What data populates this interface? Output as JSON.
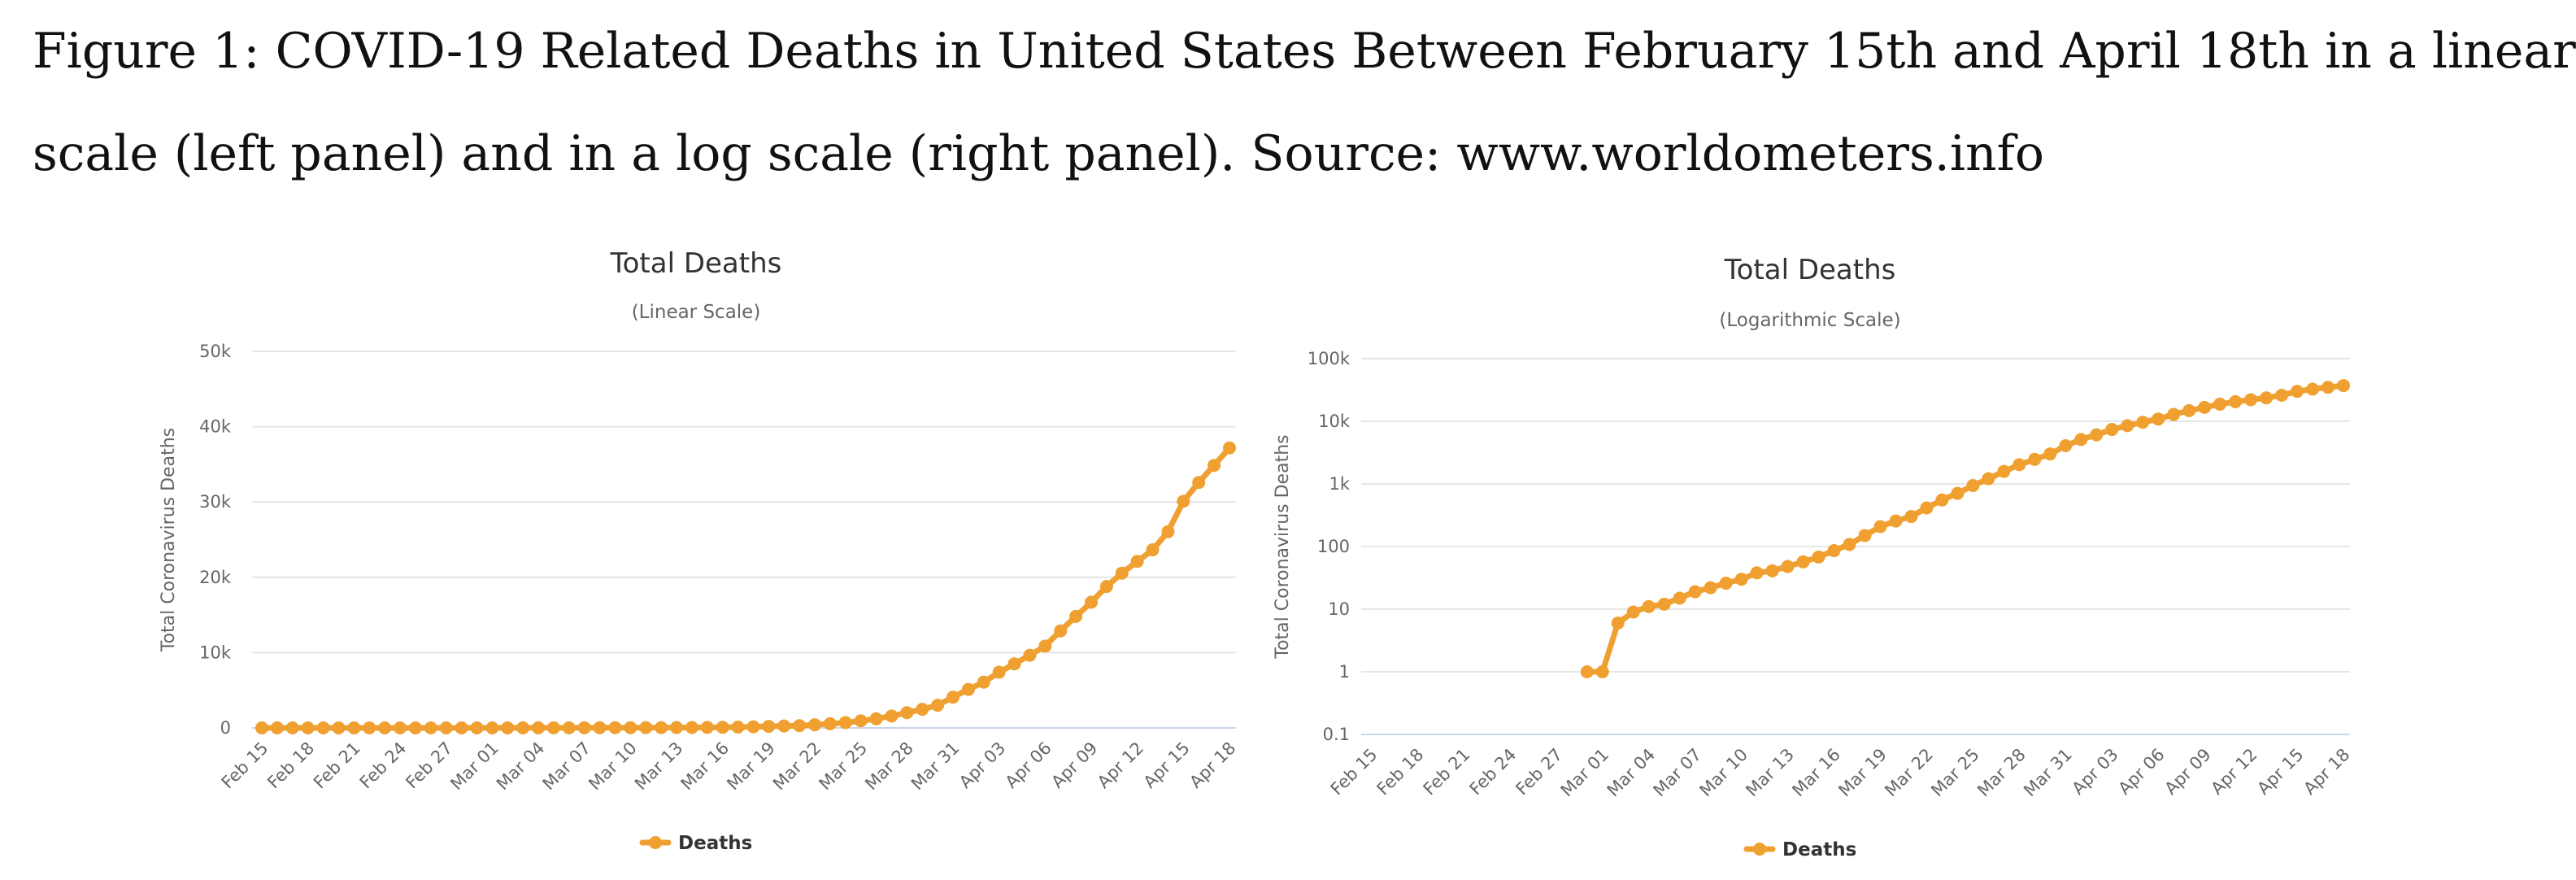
{
  "caption": {
    "line1": "Figure 1: COVID-19 Related Deaths in United States Between February 15th and April 18th in a linear",
    "line2": "scale (left panel) and in a log scale (right panel). Source: www.worldometers.info"
  },
  "chart_data": [
    {
      "type": "line",
      "title": "Total Deaths",
      "subtitle": "(Linear Scale)",
      "ylabel": "Total Coronavirus Deaths",
      "yscale": "linear",
      "ylim": [
        0,
        50000
      ],
      "yticks": [
        0,
        10000,
        20000,
        30000,
        40000,
        50000
      ],
      "ytick_labels": [
        "0",
        "10k",
        "20k",
        "30k",
        "40k",
        "50k"
      ],
      "grid": true,
      "legend_position": "bottom-center",
      "color": "#f0a030",
      "x": [
        "Feb 15",
        "Feb 16",
        "Feb 17",
        "Feb 18",
        "Feb 19",
        "Feb 20",
        "Feb 21",
        "Feb 22",
        "Feb 23",
        "Feb 24",
        "Feb 25",
        "Feb 26",
        "Feb 27",
        "Feb 28",
        "Feb 29",
        "Mar 01",
        "Mar 02",
        "Mar 03",
        "Mar 04",
        "Mar 05",
        "Mar 06",
        "Mar 07",
        "Mar 08",
        "Mar 09",
        "Mar 10",
        "Mar 11",
        "Mar 12",
        "Mar 13",
        "Mar 14",
        "Mar 15",
        "Mar 16",
        "Mar 17",
        "Mar 18",
        "Mar 19",
        "Mar 20",
        "Mar 21",
        "Mar 22",
        "Mar 23",
        "Mar 24",
        "Mar 25",
        "Mar 26",
        "Mar 27",
        "Mar 28",
        "Mar 29",
        "Mar 30",
        "Mar 31",
        "Apr 01",
        "Apr 02",
        "Apr 03",
        "Apr 04",
        "Apr 05",
        "Apr 06",
        "Apr 07",
        "Apr 08",
        "Apr 09",
        "Apr 10",
        "Apr 11",
        "Apr 12",
        "Apr 13",
        "Apr 14",
        "Apr 15",
        "Apr 16",
        "Apr 17",
        "Apr 18"
      ],
      "xtick_labels": [
        "Feb 15",
        "Feb 18",
        "Feb 21",
        "Feb 24",
        "Feb 27",
        "Mar 01",
        "Mar 04",
        "Mar 07",
        "Mar 10",
        "Mar 13",
        "Mar 16",
        "Mar 19",
        "Mar 22",
        "Mar 25",
        "Mar 28",
        "Mar 31",
        "Apr 03",
        "Apr 06",
        "Apr 09",
        "Apr 12",
        "Apr 15",
        "Apr 18"
      ],
      "series": [
        {
          "name": "Deaths",
          "values": [
            0,
            0,
            0,
            0,
            0,
            0,
            0,
            0,
            0,
            0,
            0,
            0,
            0,
            0,
            1,
            1,
            6,
            9,
            11,
            12,
            15,
            19,
            22,
            26,
            30,
            38,
            41,
            48,
            57,
            68,
            86,
            108,
            150,
            208,
            256,
            302,
            414,
            555,
            706,
            942,
            1209,
            1581,
            2026,
            2467,
            3008,
            4079,
            5118,
            6074,
            7402,
            8511,
            9647,
            10871,
            12875,
            14808,
            16686,
            18777,
            20549,
            22115,
            23644,
            26059,
            30090,
            32593,
            34860,
            37175
          ]
        }
      ]
    },
    {
      "type": "line",
      "title": "Total Deaths",
      "subtitle": "(Logarithmic Scale)",
      "ylabel": "Total Coronavirus Deaths",
      "yscale": "log",
      "ylim": [
        0.1,
        100000
      ],
      "yticks": [
        0.1,
        1,
        10,
        100,
        1000,
        10000,
        100000
      ],
      "ytick_labels": [
        "0.1",
        "1",
        "10",
        "100",
        "1k",
        "10k",
        "100k"
      ],
      "grid": true,
      "legend_position": "bottom-center",
      "color": "#f0a030",
      "x": [
        "Feb 15",
        "Feb 16",
        "Feb 17",
        "Feb 18",
        "Feb 19",
        "Feb 20",
        "Feb 21",
        "Feb 22",
        "Feb 23",
        "Feb 24",
        "Feb 25",
        "Feb 26",
        "Feb 27",
        "Feb 28",
        "Feb 29",
        "Mar 01",
        "Mar 02",
        "Mar 03",
        "Mar 04",
        "Mar 05",
        "Mar 06",
        "Mar 07",
        "Mar 08",
        "Mar 09",
        "Mar 10",
        "Mar 11",
        "Mar 12",
        "Mar 13",
        "Mar 14",
        "Mar 15",
        "Mar 16",
        "Mar 17",
        "Mar 18",
        "Mar 19",
        "Mar 20",
        "Mar 21",
        "Mar 22",
        "Mar 23",
        "Mar 24",
        "Mar 25",
        "Mar 26",
        "Mar 27",
        "Mar 28",
        "Mar 29",
        "Mar 30",
        "Mar 31",
        "Apr 01",
        "Apr 02",
        "Apr 03",
        "Apr 04",
        "Apr 05",
        "Apr 06",
        "Apr 07",
        "Apr 08",
        "Apr 09",
        "Apr 10",
        "Apr 11",
        "Apr 12",
        "Apr 13",
        "Apr 14",
        "Apr 15",
        "Apr 16",
        "Apr 17",
        "Apr 18"
      ],
      "xtick_labels": [
        "Feb 15",
        "Feb 18",
        "Feb 21",
        "Feb 24",
        "Feb 27",
        "Mar 01",
        "Mar 04",
        "Mar 07",
        "Mar 10",
        "Mar 13",
        "Mar 16",
        "Mar 19",
        "Mar 22",
        "Mar 25",
        "Mar 28",
        "Mar 31",
        "Apr 03",
        "Apr 06",
        "Apr 09",
        "Apr 12",
        "Apr 15",
        "Apr 18"
      ],
      "series": [
        {
          "name": "Deaths",
          "values": [
            null,
            null,
            null,
            null,
            null,
            null,
            null,
            null,
            null,
            null,
            null,
            null,
            null,
            null,
            1,
            1,
            6,
            9,
            11,
            12,
            15,
            19,
            22,
            26,
            30,
            38,
            41,
            48,
            57,
            68,
            86,
            108,
            150,
            208,
            256,
            302,
            414,
            555,
            706,
            942,
            1209,
            1581,
            2026,
            2467,
            3008,
            4079,
            5118,
            6074,
            7402,
            8511,
            9647,
            10871,
            12875,
            14808,
            16686,
            18777,
            20549,
            22115,
            23644,
            26059,
            30090,
            32593,
            34860,
            37175
          ]
        }
      ]
    }
  ]
}
